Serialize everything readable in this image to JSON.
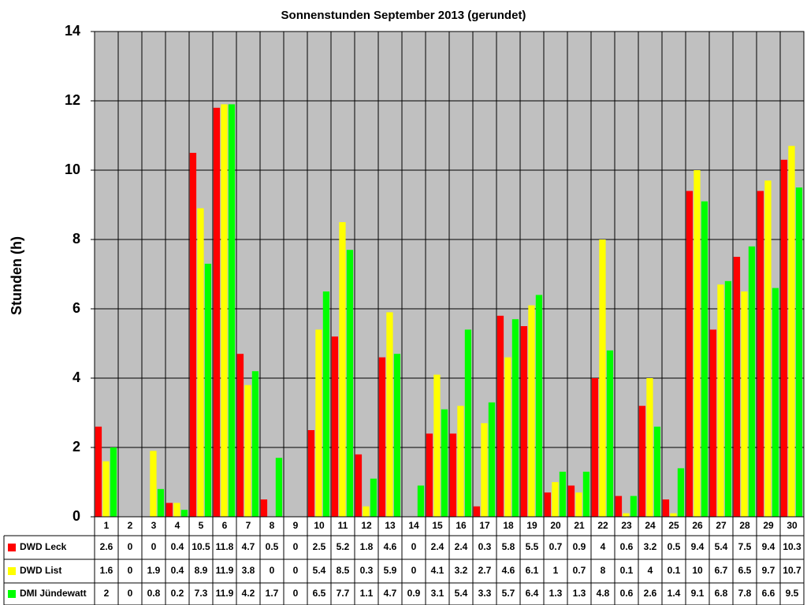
{
  "chart_data": {
    "type": "bar",
    "title": "Sonnenstunden September 2013 (gerundet)",
    "y_label": "Stunden (h)",
    "categories": [
      "1",
      "2",
      "3",
      "4",
      "5",
      "6",
      "7",
      "8",
      "9",
      "10",
      "11",
      "12",
      "13",
      "14",
      "15",
      "16",
      "17",
      "18",
      "19",
      "20",
      "21",
      "22",
      "23",
      "24",
      "25",
      "26",
      "27",
      "28",
      "29",
      "30"
    ],
    "series": [
      {
        "name": "DWD Leck",
        "color": "#ff0000",
        "values": [
          2.6,
          0,
          0,
          0.4,
          10.5,
          11.8,
          4.7,
          0.5,
          0,
          2.5,
          5.2,
          1.8,
          4.6,
          0,
          2.4,
          2.4,
          0.3,
          5.8,
          5.5,
          0.7,
          0.9,
          4,
          0.6,
          3.2,
          0.5,
          9.4,
          5.4,
          7.5,
          9.4,
          10.3
        ]
      },
      {
        "name": "DWD List",
        "color": "#ffff00",
        "values": [
          1.6,
          0,
          1.9,
          0.4,
          8.9,
          11.9,
          3.8,
          0,
          0,
          5.4,
          8.5,
          0.3,
          5.9,
          0,
          4.1,
          3.2,
          2.7,
          4.6,
          6.1,
          1,
          0.7,
          8,
          0.1,
          4,
          0.1,
          10,
          6.7,
          6.5,
          9.7,
          10.7
        ]
      },
      {
        "name": "DMI Jündewatt",
        "color": "#00ff00",
        "values": [
          2,
          0,
          0.8,
          0.2,
          7.3,
          11.9,
          4.2,
          1.7,
          0,
          6.5,
          7.7,
          1.1,
          4.7,
          0.9,
          3.1,
          5.4,
          3.3,
          5.7,
          6.4,
          1.3,
          1.3,
          4.8,
          0.6,
          2.6,
          1.4,
          9.1,
          6.8,
          7.8,
          6.6,
          9.5
        ]
      }
    ],
    "ylim": [
      0,
      14
    ],
    "yticks": [
      0,
      2,
      4,
      6,
      8,
      10,
      12,
      14
    ],
    "grid": true,
    "plot_background": "#c0c0c0"
  }
}
